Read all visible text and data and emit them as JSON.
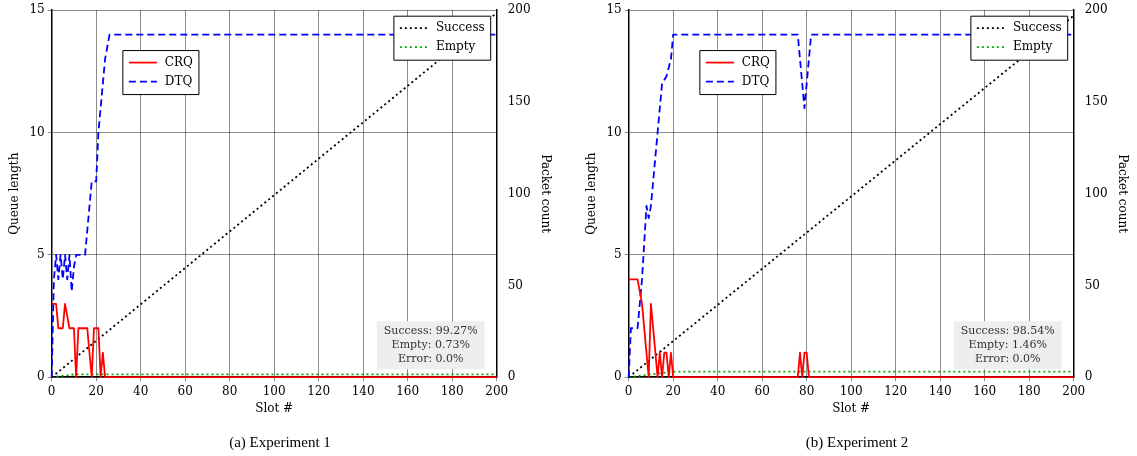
{
  "chart_data": [
    {
      "type": "line",
      "title": "(a) Experiment 1",
      "xlabel": "Slot #",
      "ylabel": "Queue length",
      "y2label": "Packet count",
      "xlim": [
        0,
        200
      ],
      "xticks": [
        0,
        20,
        40,
        60,
        80,
        100,
        120,
        140,
        160,
        180,
        200
      ],
      "ylim": [
        0,
        15
      ],
      "yticks": [
        0,
        5,
        10,
        15
      ],
      "y2lim": [
        0,
        200
      ],
      "y2ticks": [
        0,
        50,
        100,
        150,
        200
      ],
      "grid": true,
      "legend": "top",
      "marker": "none",
      "annotations": [
        "Success: 99.27%",
        "Empty: 0.73%",
        "Error: 0.0%"
      ],
      "series": [
        {
          "name": "CRQ",
          "color": "#ff0000",
          "line_style": "solid",
          "x": [
            0,
            2,
            3,
            5,
            6,
            8,
            10,
            11,
            12,
            16,
            18,
            19,
            21,
            22,
            23,
            24,
            25,
            200
          ],
          "values": [
            3,
            3,
            2,
            2,
            3,
            2,
            2,
            0,
            2,
            2,
            0,
            2,
            2,
            0,
            1,
            0,
            0,
            0
          ]
        },
        {
          "name": "DTQ",
          "color": "#0000ff",
          "line_style": "dashed",
          "x": [
            0,
            1,
            2,
            3,
            4,
            5,
            6,
            7,
            8,
            9,
            10,
            11,
            15,
            17,
            18,
            20,
            21,
            24,
            26,
            200
          ],
          "values": [
            0,
            4,
            5,
            4,
            5,
            4,
            5,
            4,
            5,
            3.5,
            4.5,
            5,
            5,
            7,
            8,
            8,
            10,
            13,
            14,
            14
          ]
        },
        {
          "name": "Success",
          "color": "#000000",
          "line_style": "dotted",
          "axis": "y2",
          "x": [
            0,
            200
          ],
          "values": [
            0,
            198.5
          ]
        },
        {
          "name": "Empty",
          "color": "#00aa00",
          "line_style": "dotted",
          "axis": "y2",
          "x": [
            0,
            10,
            200
          ],
          "values": [
            0,
            1.5,
            1.5
          ]
        }
      ]
    },
    {
      "type": "line",
      "title": "(b) Experiment 2",
      "xlabel": "Slot #",
      "ylabel": "Queue length",
      "y2label": "Packet count",
      "xlim": [
        0,
        200
      ],
      "xticks": [
        0,
        20,
        40,
        60,
        80,
        100,
        120,
        140,
        160,
        180,
        200
      ],
      "ylim": [
        0,
        15
      ],
      "yticks": [
        0,
        5,
        10,
        15
      ],
      "y2lim": [
        0,
        200
      ],
      "y2ticks": [
        0,
        50,
        100,
        150,
        200
      ],
      "grid": true,
      "legend": "top",
      "marker": "none",
      "annotations": [
        "Success: 98.54%",
        "Empty: 1.46%",
        "Error: 0.0%"
      ],
      "series": [
        {
          "name": "CRQ",
          "color": "#ff0000",
          "line_style": "solid",
          "x": [
            0,
            4,
            6,
            9,
            10,
            13,
            14,
            15,
            16,
            17,
            18,
            19,
            20,
            76,
            77,
            78,
            79,
            80,
            81,
            200
          ],
          "values": [
            4,
            4,
            3,
            0,
            3,
            0,
            1,
            0,
            1,
            1,
            0,
            1,
            0,
            0,
            1,
            0,
            1,
            1,
            0,
            0
          ]
        },
        {
          "name": "DTQ",
          "color": "#0000ff",
          "line_style": "dashed",
          "x": [
            0,
            1,
            4,
            6,
            8,
            9,
            10,
            13,
            15,
            17,
            19,
            20,
            76,
            79,
            82,
            200
          ],
          "values": [
            0,
            2,
            2,
            4,
            7,
            6.5,
            7,
            10,
            12,
            12.3,
            13,
            14,
            14,
            11,
            14,
            14
          ]
        },
        {
          "name": "Success",
          "color": "#000000",
          "line_style": "dotted",
          "axis": "y2",
          "x": [
            0,
            200
          ],
          "values": [
            0,
            197
          ]
        },
        {
          "name": "Empty",
          "color": "#00aa00",
          "line_style": "dotted",
          "axis": "y2",
          "x": [
            0,
            20,
            200
          ],
          "values": [
            0,
            3,
            3
          ]
        }
      ]
    }
  ]
}
